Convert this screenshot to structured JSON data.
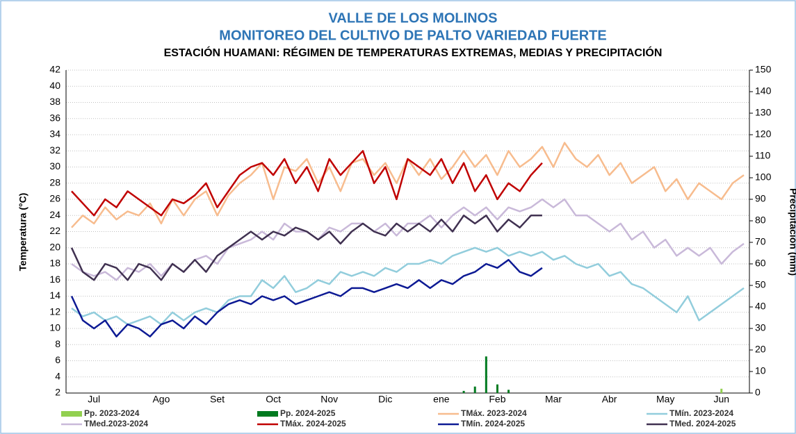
{
  "chart_data": {
    "type": "line",
    "title": "VALLE DE LOS MOLINOS",
    "title2": "MONITOREO DEL CULTIVO DE PALTO VARIEDAD FUERTE",
    "subtitle": "ESTACIÓN HUAMANI: RÉGIMEN DE TEMPERATURAS EXTREMAS, MEDIAS Y PRECIPITACIÓN",
    "y_label": "Temperatura (°C)",
    "y2_label": "Precipitación (mm)",
    "categories": [
      null,
      null,
      "Jul",
      null,
      null,
      null,
      null,
      null,
      "Ago",
      null,
      null,
      null,
      null,
      "Set",
      null,
      null,
      null,
      null,
      "Oct",
      null,
      null,
      null,
      null,
      "Nov",
      null,
      null,
      null,
      null,
      "Dic",
      null,
      null,
      null,
      null,
      "ene",
      null,
      null,
      null,
      null,
      "Feb",
      null,
      null,
      null,
      null,
      "Mar",
      null,
      null,
      null,
      null,
      "Abr",
      null,
      null,
      null,
      null,
      "May",
      null,
      null,
      null,
      null,
      "Jun",
      null,
      null
    ],
    "ylim": [
      2,
      42
    ],
    "yticks": [
      2,
      4,
      6,
      8,
      10,
      12,
      14,
      16,
      18,
      20,
      22,
      24,
      26,
      28,
      30,
      32,
      34,
      36,
      38,
      40,
      42
    ],
    "y2lim": [
      0,
      150
    ],
    "y2ticks": [
      0,
      10,
      20,
      30,
      40,
      50,
      60,
      70,
      80,
      90,
      100,
      110,
      120,
      130,
      140,
      150
    ],
    "grid": true,
    "legend": "bottom",
    "series": [
      {
        "name": "Pp. 2023-2024",
        "type": "bar",
        "axis": "y2",
        "color": "#92d050",
        "values": [
          0,
          0,
          0,
          0,
          0,
          0,
          0,
          0,
          0,
          0,
          0,
          0,
          0,
          0,
          0,
          0,
          0,
          0,
          0,
          0,
          0,
          0,
          0,
          0,
          0,
          0,
          0,
          0,
          0,
          0,
          0,
          0,
          0,
          0,
          0,
          0,
          0,
          0,
          0,
          0,
          0,
          0,
          0,
          0,
          0,
          0,
          0,
          0,
          0,
          0,
          0,
          0,
          0,
          0,
          0,
          0,
          0,
          0,
          2,
          0,
          0
        ]
      },
      {
        "name": "Pp. 2024-2025",
        "type": "bar",
        "axis": "y2",
        "color": "#007a1f",
        "values": [
          0,
          0,
          0,
          0,
          0,
          0,
          0,
          0,
          0,
          0,
          0,
          0,
          0,
          0,
          0,
          0,
          0,
          0,
          0,
          0,
          0,
          0,
          0,
          0,
          0,
          0,
          0,
          0,
          0,
          0,
          0,
          0,
          0,
          0,
          0,
          1,
          3,
          17,
          4,
          1.5,
          0,
          0,
          0,
          null,
          null,
          null,
          null,
          null,
          null,
          null,
          null,
          null,
          null,
          null,
          null,
          null,
          null,
          null,
          null,
          null,
          null
        ]
      },
      {
        "name": "TMáx. 2023-2024",
        "color": "#f7bc8e",
        "values": [
          22.5,
          24,
          23,
          25,
          23.5,
          24.5,
          24,
          25.5,
          23,
          26,
          24,
          26,
          27,
          24,
          26.5,
          28,
          29,
          30.5,
          26,
          30,
          29.5,
          31,
          28,
          30,
          27,
          30.5,
          31,
          29,
          30.5,
          28,
          31,
          29,
          31,
          28.5,
          30,
          32,
          30,
          31.5,
          29,
          32,
          30,
          31,
          32.5,
          30,
          33,
          31,
          30,
          31.5,
          29,
          30.5,
          28,
          29,
          30,
          27,
          28.5,
          26,
          28,
          27,
          26,
          28,
          29
        ]
      },
      {
        "name": "TMín. 2023-2024",
        "color": "#92cddc",
        "values": [
          12.5,
          11.5,
          12,
          11,
          11.5,
          10.5,
          11,
          11.5,
          10.5,
          12,
          11,
          12,
          12.5,
          12,
          13.5,
          14,
          14,
          16,
          15,
          16.5,
          14.5,
          15,
          16,
          15.5,
          17,
          16.5,
          17,
          16.5,
          17.5,
          17,
          18,
          18,
          18.5,
          18,
          19,
          19.5,
          20,
          19.5,
          20,
          19,
          19.5,
          19,
          19.5,
          18.5,
          19,
          18,
          17.5,
          18,
          16.5,
          17,
          15.5,
          15,
          14,
          13,
          12,
          14,
          11,
          12,
          13,
          14,
          15
        ]
      },
      {
        "name": "TMed.2023-2024",
        "color": "#c9b9d9",
        "values": [
          18,
          17,
          16.5,
          17,
          16,
          17.5,
          17,
          18,
          16.5,
          18,
          17,
          18.5,
          19,
          18,
          20,
          20.5,
          21,
          22,
          21,
          23,
          22,
          22,
          21,
          22.5,
          22,
          23,
          23,
          22,
          23,
          21.5,
          23,
          23,
          24,
          22.5,
          24,
          25,
          24,
          25,
          23.5,
          25,
          24.5,
          25,
          26,
          25,
          26,
          24,
          24,
          23,
          22,
          23,
          21,
          22,
          20,
          21,
          19,
          20,
          19,
          20,
          18,
          19.5,
          20.5
        ]
      },
      {
        "name": "TMáx. 2024-2025",
        "color": "#c00000",
        "values": [
          27,
          25.5,
          24,
          26,
          25,
          27,
          26,
          25,
          24,
          26,
          25.5,
          26.5,
          28,
          25,
          27,
          29,
          30,
          30.5,
          29,
          31,
          28,
          30,
          27,
          31,
          29,
          30.5,
          32,
          28,
          30,
          26,
          31,
          30,
          29,
          31,
          28,
          30.5,
          27,
          29,
          26,
          28,
          27,
          29,
          30.5,
          null,
          null,
          null,
          null,
          null,
          null,
          null,
          null,
          null,
          null,
          null,
          null,
          null,
          null,
          null,
          null,
          null,
          null
        ]
      },
      {
        "name": "TMín. 2024-2025",
        "color": "#0d1a94",
        "values": [
          14,
          11,
          10,
          11,
          9,
          10.5,
          10,
          9,
          10.5,
          11,
          10,
          11.5,
          10.5,
          12,
          13,
          13.5,
          13,
          14,
          13.5,
          14,
          13,
          13.5,
          14,
          14.5,
          14,
          15,
          15,
          14.5,
          15,
          15.5,
          15,
          16,
          15,
          16,
          15.5,
          16.5,
          17,
          18,
          17.5,
          18.5,
          17,
          16.5,
          17.5,
          null,
          null,
          null,
          null,
          null,
          null,
          null,
          null,
          null,
          null,
          null,
          null,
          null,
          null,
          null,
          null,
          null,
          null
        ]
      },
      {
        "name": "TMed. 2024-2025",
        "color": "#403151",
        "values": [
          20,
          17,
          16,
          18,
          17.5,
          16,
          18,
          17.5,
          16,
          18,
          17,
          18.5,
          17,
          19,
          20,
          21,
          22,
          21,
          22,
          21.5,
          22.5,
          22,
          21,
          22,
          20.5,
          22,
          23,
          22,
          21.5,
          23,
          22,
          23,
          22,
          23.5,
          22,
          24,
          23,
          24,
          22,
          23.5,
          22.5,
          24,
          24,
          null,
          null,
          null,
          null,
          null,
          null,
          null,
          null,
          null,
          null,
          null,
          null,
          null,
          null,
          null,
          null,
          null,
          null
        ]
      }
    ]
  }
}
